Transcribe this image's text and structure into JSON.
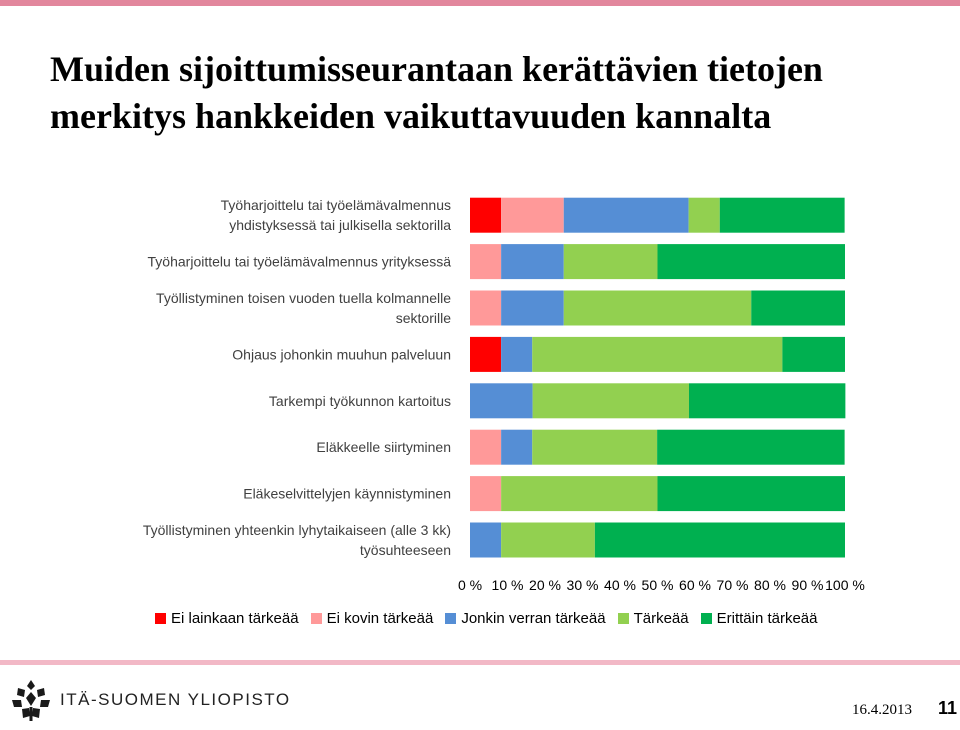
{
  "slide": {
    "title_line1": "Muiden sijoittumisseurantaan kerättävien tietojen",
    "title_line2": "merkitys hankkeiden vaikuttavuuden kannalta",
    "logo_text": "ITÄ-SUOMEN YLIOPISTO",
    "date": "16.4.2013",
    "page_number": "11"
  },
  "colors": {
    "top_bar": "#e2879d",
    "bottom_bar": "#f2b8c6"
  },
  "chart_data": {
    "type": "bar",
    "orientation": "horizontal",
    "stacked": "percent",
    "categories": [
      [
        "Työharjoittelu tai työelämävalmennus",
        "yhdistyksessä tai julkisella sektorilla"
      ],
      [
        "Työharjoittelu tai työelämävalmennus yrityksessä"
      ],
      [
        "Työllistyminen toisen vuoden tuella kolmannelle",
        "sektorille"
      ],
      [
        "Ohjaus johonkin muuhun palveluun"
      ],
      [
        "Tarkempi työkunnon kartoitus"
      ],
      [
        "Eläkkeelle siirtyminen"
      ],
      [
        "Eläkeselvittelyjen käynnistyminen"
      ],
      [
        "Työllistyminen yhteenkin lyhytaikaiseen (alle 3 kk)",
        "työsuhteeseen"
      ]
    ],
    "series": [
      {
        "name": "Ei lainkaan tärkeää",
        "color": "#ff0000",
        "values": [
          8.3,
          0,
          0,
          8.3,
          0,
          0,
          0,
          0
        ]
      },
      {
        "name": "Ei kovin tärkeää",
        "color": "#ff9999",
        "values": [
          16.7,
          8.3,
          8.3,
          0,
          0,
          8.3,
          8.3,
          0
        ]
      },
      {
        "name": "Jonkin verran tärkeää",
        "color": "#558ed5",
        "values": [
          33.3,
          16.7,
          16.7,
          8.3,
          16.7,
          8.3,
          0,
          8.3
        ]
      },
      {
        "name": "Tärkeää",
        "color": "#92d050",
        "values": [
          8.3,
          25,
          50,
          66.7,
          41.7,
          33.3,
          41.7,
          25
        ]
      },
      {
        "name": "Erittäin tärkeää",
        "color": "#00b050",
        "values": [
          33.3,
          50,
          25,
          16.7,
          41.7,
          50,
          50,
          66.7
        ]
      }
    ],
    "xlim": [
      0,
      100
    ],
    "x_ticks": [
      "0 %",
      "10 %",
      "20 %",
      "30 %",
      "40 %",
      "50 %",
      "60 %",
      "70 %",
      "80 %",
      "90 %",
      "100 %"
    ],
    "legend_position": "bottom",
    "grid": false
  }
}
